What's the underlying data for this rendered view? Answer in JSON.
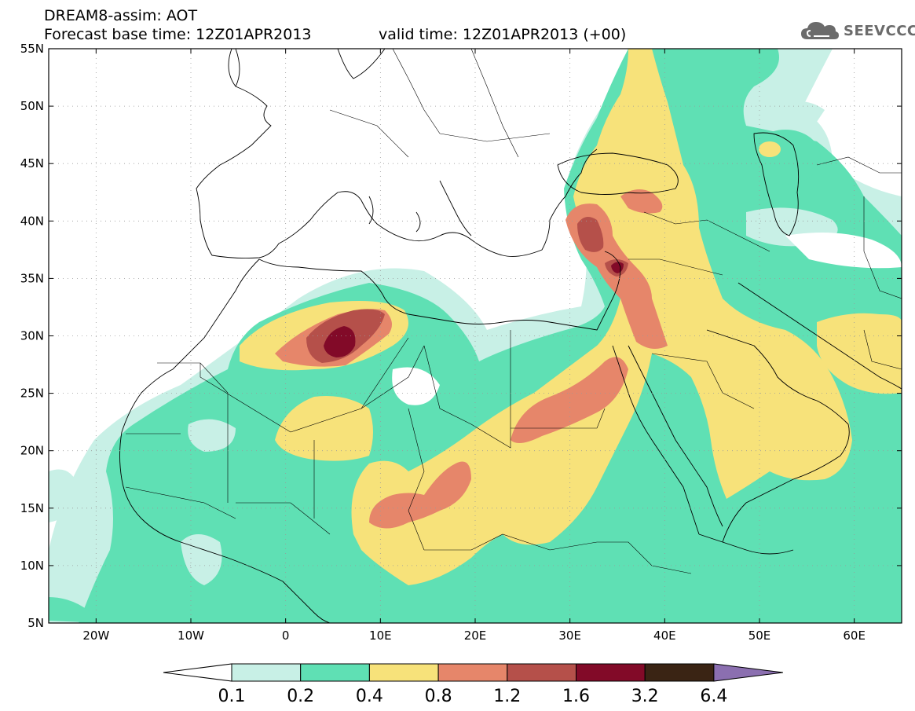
{
  "header": {
    "title_line1": "DREAM8-assim: AOT",
    "title_line2": "Forecast base time: 12Z01APR2013",
    "valid_time": "valid time: 12Z01APR2013 (+00)",
    "logo_text": "SEEVCCC",
    "logo_icon": "cloud-icon"
  },
  "map": {
    "lat_labels": [
      "55N",
      "50N",
      "45N",
      "40N",
      "35N",
      "30N",
      "25N",
      "20N",
      "15N",
      "10N",
      "5N"
    ],
    "lon_labels": [
      "20W",
      "10W",
      "0",
      "10E",
      "20E",
      "30E",
      "40E",
      "50E",
      "60E"
    ],
    "lat_range": [
      5,
      55
    ],
    "lon_range": [
      -25,
      65
    ],
    "grid": "dotted"
  },
  "legend": {
    "levels": [
      "0.1",
      "0.2",
      "0.4",
      "0.8",
      "1.2",
      "1.6",
      "3.2",
      "6.4"
    ],
    "colors": [
      "#ffffff",
      "#c8f0e6",
      "#5fe0b4",
      "#f7e27a",
      "#e6866a",
      "#b5504a",
      "#820a28",
      "#3a2414",
      "#8b6fb0"
    ]
  },
  "colors": {
    "c01": "#c8f0e6",
    "c02": "#5fe0b4",
    "c04": "#f7e27a",
    "c08": "#e6866a",
    "c12": "#b5504a",
    "c16": "#820a28"
  }
}
